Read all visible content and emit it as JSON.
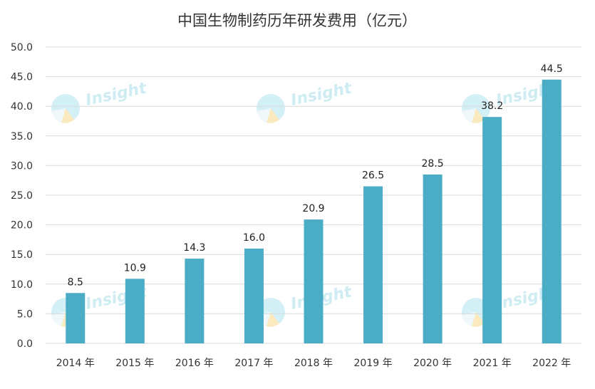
{
  "chart_data": {
    "type": "bar",
    "title": "中国生物制药历年研发费用（亿元）",
    "categories": [
      "2014 年",
      "2015 年",
      "2016 年",
      "2017 年",
      "2018 年",
      "2019 年",
      "2020 年",
      "2021 年",
      "2022 年"
    ],
    "values": [
      8.5,
      10.9,
      14.3,
      16.0,
      20.9,
      26.5,
      28.5,
      38.2,
      44.5
    ],
    "data_labels": [
      "8.5",
      "10.9",
      "14.3",
      "16.0",
      "20.9",
      "26.5",
      "28.5",
      "38.2",
      "44.5"
    ],
    "y_ticks": [
      "0.0",
      "5.0",
      "10.0",
      "15.0",
      "20.0",
      "25.0",
      "30.0",
      "35.0",
      "40.0",
      "45.0",
      "50.0"
    ],
    "ylim": [
      0,
      50
    ],
    "xlabel": "",
    "ylabel": "",
    "grid": true,
    "legend": "none",
    "bar_color": "#4bacc6",
    "grid_color": "#d9d9d9"
  },
  "watermark": {
    "text": "Insight"
  }
}
